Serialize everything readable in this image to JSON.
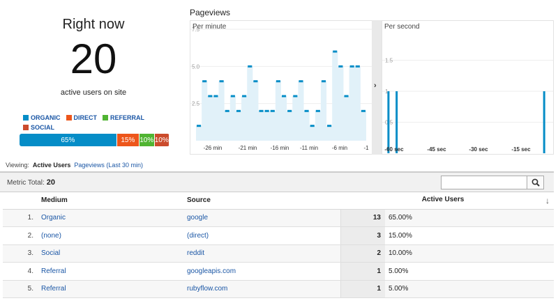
{
  "summary": {
    "title": "Right now",
    "active_users": "20",
    "subtitle": "active users on site"
  },
  "legend": [
    {
      "label": "ORGANIC",
      "color": "#058dc7"
    },
    {
      "label": "DIRECT",
      "color": "#ed561b"
    },
    {
      "label": "REFERRAL",
      "color": "#50b432"
    },
    {
      "label": "SOCIAL",
      "color": "#cb4b2c"
    }
  ],
  "breakdown": [
    {
      "label": "65%",
      "value": 65,
      "color": "#058dc7"
    },
    {
      "label": "15%",
      "value": 15,
      "color": "#ed561b"
    },
    {
      "label": "10%",
      "value": 10,
      "color": "#50b432"
    },
    {
      "label": "10%",
      "value": 10,
      "color": "#cb4b2c"
    }
  ],
  "pageviews": {
    "title": "Pageviews",
    "per_minute_label": "Per minute",
    "per_second_label": "Per second"
  },
  "chart_data": [
    {
      "type": "bar",
      "title": "Per minute",
      "ylim": [
        0,
        7.5
      ],
      "ytick_labels": [
        "7.5",
        "5.0",
        "2.5"
      ],
      "xtick_labels": [
        "-26 min",
        "-21 min",
        "-16 min",
        "-11 min",
        "-6 min",
        "-1"
      ],
      "values": [
        1,
        4,
        3,
        3,
        4,
        2,
        3,
        2,
        3,
        5,
        4,
        2,
        2,
        2,
        4,
        3,
        2,
        3,
        4,
        2,
        1,
        2,
        4,
        1,
        6,
        5,
        3,
        5,
        5,
        2
      ],
      "color": "#058dc7",
      "grid": true
    },
    {
      "type": "bar",
      "title": "Per second",
      "ylim": [
        0,
        2
      ],
      "ytick_labels": [
        "1.5",
        "1",
        "0.5"
      ],
      "xtick_labels": [
        "-60 sec",
        "-45 sec",
        "-30 sec",
        "-15 sec"
      ],
      "spikes": [
        {
          "x": -59,
          "value": 1
        },
        {
          "x": -56,
          "value": 1
        },
        {
          "x": -2,
          "value": 1
        }
      ],
      "color": "#058dc7",
      "grid": true
    }
  ],
  "viewing": {
    "label": "Viewing:",
    "active_tab": "Active Users",
    "other_tab": "Pageviews (Last 30 min)"
  },
  "metric_total": {
    "label": "Metric Total:",
    "value": "20"
  },
  "search": {
    "value": ""
  },
  "table": {
    "headers": {
      "medium": "Medium",
      "source": "Source",
      "active_users": "Active Users"
    },
    "rows": [
      {
        "num": "1.",
        "medium": "Organic",
        "source": "google",
        "users": "13",
        "pct": "65.00%"
      },
      {
        "num": "2.",
        "medium": "(none)",
        "source": "(direct)",
        "users": "3",
        "pct": "15.00%"
      },
      {
        "num": "3.",
        "medium": "Social",
        "source": "reddit",
        "users": "2",
        "pct": "10.00%"
      },
      {
        "num": "4.",
        "medium": "Referral",
        "source": "googleapis.com",
        "users": "1",
        "pct": "5.00%"
      },
      {
        "num": "5.",
        "medium": "Referral",
        "source": "rubyflow.com",
        "users": "1",
        "pct": "5.00%"
      }
    ]
  }
}
